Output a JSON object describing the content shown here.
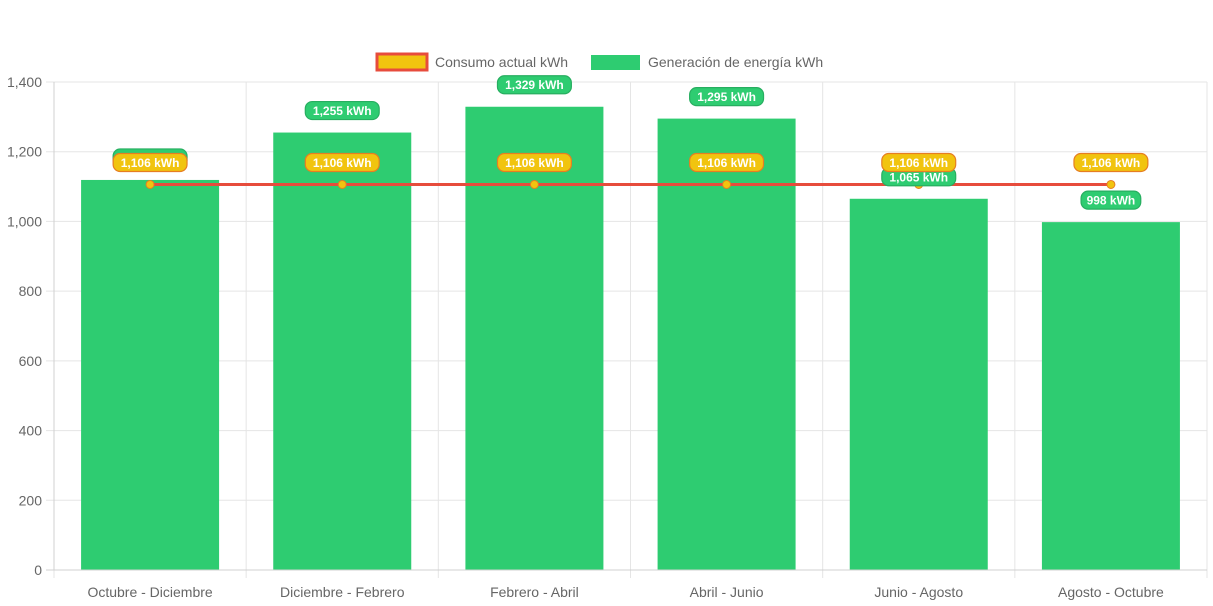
{
  "chart_data": {
    "type": "bar",
    "categories": [
      "Octubre - Diciembre",
      "Diciembre - Febrero",
      "Febrero - Abril",
      "Abril - Junio",
      "Junio - Agosto",
      "Agosto - Octubre"
    ],
    "series": [
      {
        "name": "Consumo actual kWh",
        "type": "line",
        "values": [
          1106,
          1106,
          1106,
          1106,
          1106,
          1106
        ],
        "labels": [
          "1,106 kWh",
          "1,106 kWh",
          "1,106 kWh",
          "1,106 kWh",
          "1,106 kWh",
          "1,106 kWh"
        ],
        "color": "#e74c3c",
        "point_color": "#f1c40f",
        "label_color": "#f1c40f"
      },
      {
        "name": "Generación de energía kWh",
        "type": "bar",
        "values": [
          1119,
          1255,
          1329,
          1295,
          1065,
          998
        ],
        "labels": [
          "1,119 kWh",
          "1,255 kWh",
          "1,329 kWh",
          "1,295 kWh",
          "1,065 kWh",
          "998 kWh"
        ],
        "color": "#2ecc71"
      }
    ],
    "yticks": [
      "0",
      "200",
      "400",
      "600",
      "800",
      "1,000",
      "1,200",
      "1,400"
    ],
    "ylim": [
      0,
      1400
    ],
    "grid": true,
    "legend_position": "top"
  }
}
